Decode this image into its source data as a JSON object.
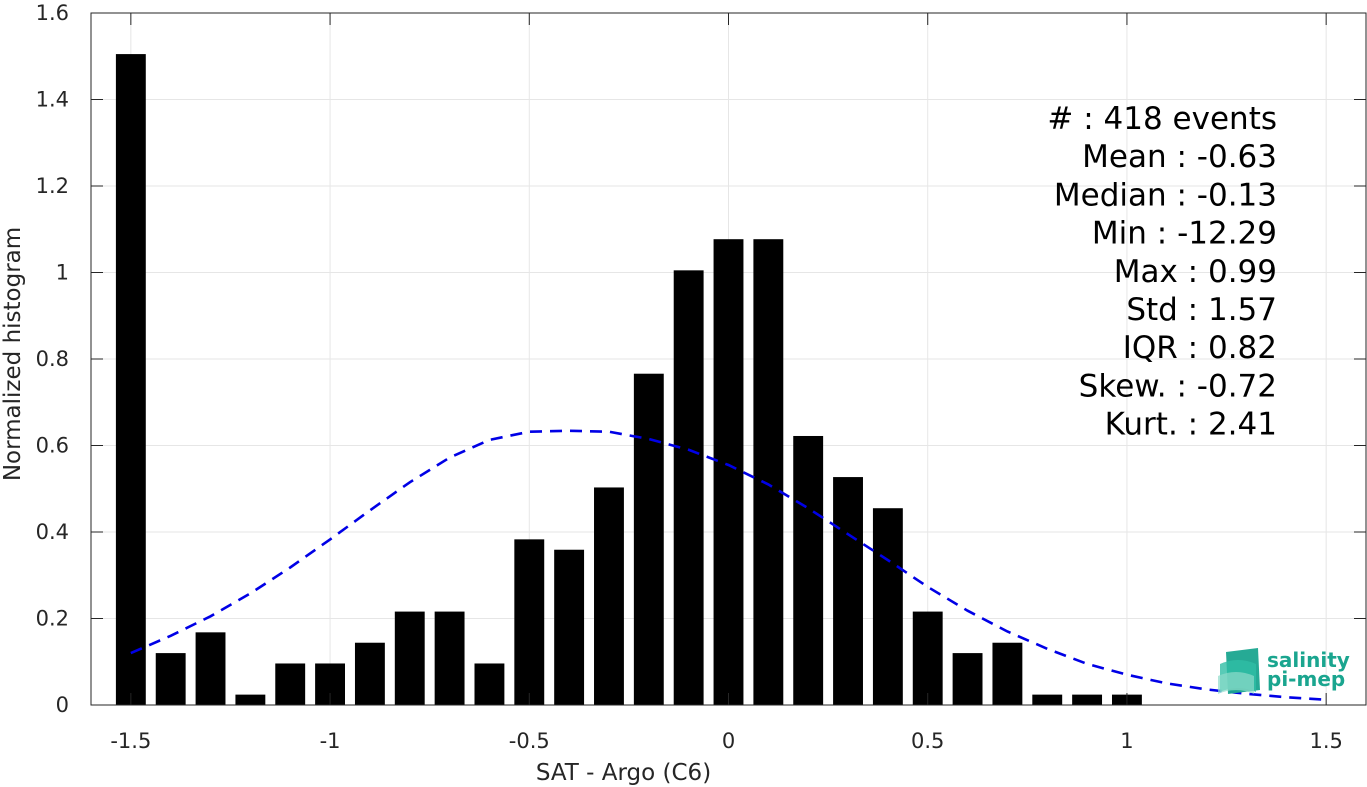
{
  "chart_data": {
    "type": "bar",
    "xlabel": "SAT - Argo (C6)",
    "ylabel": "Normalized histogram",
    "xlim": [
      -1.6,
      1.6
    ],
    "ylim": [
      0,
      1.6
    ],
    "xticks": [
      -1.5,
      -1,
      -0.5,
      0,
      0.5,
      1,
      1.5
    ],
    "xtick_labels": [
      "-1.5",
      "-1",
      "-0.5",
      "0",
      "0.5",
      "1",
      "1.5"
    ],
    "yticks": [
      0,
      0.2,
      0.4,
      0.6,
      0.8,
      1,
      1.2,
      1.4,
      1.6
    ],
    "ytick_labels": [
      "0",
      "0.2",
      "0.4",
      "0.6",
      "0.8",
      "1",
      "1.2",
      "1.4",
      "1.6"
    ],
    "grid": true,
    "bar_width": 0.075,
    "bars": {
      "x": [
        -1.5,
        -1.4,
        -1.3,
        -1.2,
        -1.1,
        -1.0,
        -0.9,
        -0.8,
        -0.7,
        -0.6,
        -0.5,
        -0.4,
        -0.3,
        -0.2,
        -0.1,
        0.0,
        0.1,
        0.2,
        0.3,
        0.4,
        0.5,
        0.6,
        0.7,
        0.8,
        0.9,
        1.0
      ],
      "values": [
        1.505,
        0.12,
        0.168,
        0.024,
        0.096,
        0.096,
        0.144,
        0.216,
        0.216,
        0.096,
        0.383,
        0.359,
        0.503,
        0.766,
        1.005,
        1.077,
        1.077,
        0.622,
        0.527,
        0.455,
        0.216,
        0.12,
        0.144,
        0.024,
        0.024,
        0.024
      ],
      "color": "#000000"
    },
    "fit_curve": {
      "style": "dashed",
      "color": "#0000e6",
      "x": [
        -1.5,
        -1.4,
        -1.3,
        -1.2,
        -1.1,
        -1.0,
        -0.9,
        -0.8,
        -0.7,
        -0.6,
        -0.5,
        -0.4,
        -0.3,
        -0.2,
        -0.1,
        0.0,
        0.1,
        0.2,
        0.3,
        0.4,
        0.5,
        0.6,
        0.7,
        0.8,
        0.9,
        1.0,
        1.1,
        1.2,
        1.3,
        1.4,
        1.5
      ],
      "y": [
        0.12,
        0.16,
        0.205,
        0.258,
        0.318,
        0.383,
        0.45,
        0.515,
        0.572,
        0.613,
        0.632,
        0.634,
        0.632,
        0.615,
        0.59,
        0.555,
        0.51,
        0.455,
        0.395,
        0.335,
        0.273,
        0.218,
        0.17,
        0.13,
        0.095,
        0.07,
        0.05,
        0.036,
        0.026,
        0.018,
        0.012
      ]
    },
    "stats_lines": [
      "#  : 418 events",
      "Mean : -0.63",
      "Median : -0.13",
      "Min : -12.29",
      "Max : 0.99",
      "Std : 1.57",
      "IQR : 0.82",
      "Skew. : -0.72",
      "Kurt. : 2.41"
    ]
  },
  "logo": {
    "line1": "salinity",
    "line2": "pi-mep",
    "color": "#1aa58f"
  }
}
